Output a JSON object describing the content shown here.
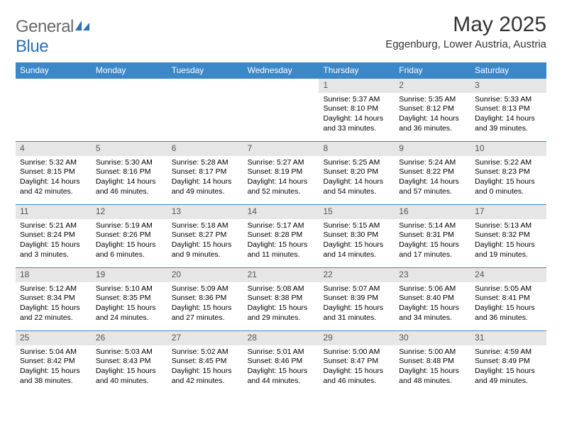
{
  "logo": {
    "text1": "General",
    "text2": "Blue"
  },
  "title": "May 2025",
  "location": "Eggenburg, Lower Austria, Austria",
  "colors": {
    "header_bg": "#3b87c8",
    "header_text": "#ffffff",
    "daynum_bg": "#e6e6e6",
    "daynum_text": "#555555",
    "border": "#3b87c8",
    "logo_gray": "#6a6a6a",
    "logo_blue": "#2d6fb8"
  },
  "weekdays": [
    "Sunday",
    "Monday",
    "Tuesday",
    "Wednesday",
    "Thursday",
    "Friday",
    "Saturday"
  ],
  "weeks": [
    [
      null,
      null,
      null,
      null,
      {
        "n": "1",
        "sr": "5:37 AM",
        "ss": "8:10 PM",
        "dl1": "Daylight: 14 hours",
        "dl2": "and 33 minutes."
      },
      {
        "n": "2",
        "sr": "5:35 AM",
        "ss": "8:12 PM",
        "dl1": "Daylight: 14 hours",
        "dl2": "and 36 minutes."
      },
      {
        "n": "3",
        "sr": "5:33 AM",
        "ss": "8:13 PM",
        "dl1": "Daylight: 14 hours",
        "dl2": "and 39 minutes."
      }
    ],
    [
      {
        "n": "4",
        "sr": "5:32 AM",
        "ss": "8:15 PM",
        "dl1": "Daylight: 14 hours",
        "dl2": "and 42 minutes."
      },
      {
        "n": "5",
        "sr": "5:30 AM",
        "ss": "8:16 PM",
        "dl1": "Daylight: 14 hours",
        "dl2": "and 46 minutes."
      },
      {
        "n": "6",
        "sr": "5:28 AM",
        "ss": "8:17 PM",
        "dl1": "Daylight: 14 hours",
        "dl2": "and 49 minutes."
      },
      {
        "n": "7",
        "sr": "5:27 AM",
        "ss": "8:19 PM",
        "dl1": "Daylight: 14 hours",
        "dl2": "and 52 minutes."
      },
      {
        "n": "8",
        "sr": "5:25 AM",
        "ss": "8:20 PM",
        "dl1": "Daylight: 14 hours",
        "dl2": "and 54 minutes."
      },
      {
        "n": "9",
        "sr": "5:24 AM",
        "ss": "8:22 PM",
        "dl1": "Daylight: 14 hours",
        "dl2": "and 57 minutes."
      },
      {
        "n": "10",
        "sr": "5:22 AM",
        "ss": "8:23 PM",
        "dl1": "Daylight: 15 hours",
        "dl2": "and 0 minutes."
      }
    ],
    [
      {
        "n": "11",
        "sr": "5:21 AM",
        "ss": "8:24 PM",
        "dl1": "Daylight: 15 hours",
        "dl2": "and 3 minutes."
      },
      {
        "n": "12",
        "sr": "5:19 AM",
        "ss": "8:26 PM",
        "dl1": "Daylight: 15 hours",
        "dl2": "and 6 minutes."
      },
      {
        "n": "13",
        "sr": "5:18 AM",
        "ss": "8:27 PM",
        "dl1": "Daylight: 15 hours",
        "dl2": "and 9 minutes."
      },
      {
        "n": "14",
        "sr": "5:17 AM",
        "ss": "8:28 PM",
        "dl1": "Daylight: 15 hours",
        "dl2": "and 11 minutes."
      },
      {
        "n": "15",
        "sr": "5:15 AM",
        "ss": "8:30 PM",
        "dl1": "Daylight: 15 hours",
        "dl2": "and 14 minutes."
      },
      {
        "n": "16",
        "sr": "5:14 AM",
        "ss": "8:31 PM",
        "dl1": "Daylight: 15 hours",
        "dl2": "and 17 minutes."
      },
      {
        "n": "17",
        "sr": "5:13 AM",
        "ss": "8:32 PM",
        "dl1": "Daylight: 15 hours",
        "dl2": "and 19 minutes."
      }
    ],
    [
      {
        "n": "18",
        "sr": "5:12 AM",
        "ss": "8:34 PM",
        "dl1": "Daylight: 15 hours",
        "dl2": "and 22 minutes."
      },
      {
        "n": "19",
        "sr": "5:10 AM",
        "ss": "8:35 PM",
        "dl1": "Daylight: 15 hours",
        "dl2": "and 24 minutes."
      },
      {
        "n": "20",
        "sr": "5:09 AM",
        "ss": "8:36 PM",
        "dl1": "Daylight: 15 hours",
        "dl2": "and 27 minutes."
      },
      {
        "n": "21",
        "sr": "5:08 AM",
        "ss": "8:38 PM",
        "dl1": "Daylight: 15 hours",
        "dl2": "and 29 minutes."
      },
      {
        "n": "22",
        "sr": "5:07 AM",
        "ss": "8:39 PM",
        "dl1": "Daylight: 15 hours",
        "dl2": "and 31 minutes."
      },
      {
        "n": "23",
        "sr": "5:06 AM",
        "ss": "8:40 PM",
        "dl1": "Daylight: 15 hours",
        "dl2": "and 34 minutes."
      },
      {
        "n": "24",
        "sr": "5:05 AM",
        "ss": "8:41 PM",
        "dl1": "Daylight: 15 hours",
        "dl2": "and 36 minutes."
      }
    ],
    [
      {
        "n": "25",
        "sr": "5:04 AM",
        "ss": "8:42 PM",
        "dl1": "Daylight: 15 hours",
        "dl2": "and 38 minutes."
      },
      {
        "n": "26",
        "sr": "5:03 AM",
        "ss": "8:43 PM",
        "dl1": "Daylight: 15 hours",
        "dl2": "and 40 minutes."
      },
      {
        "n": "27",
        "sr": "5:02 AM",
        "ss": "8:45 PM",
        "dl1": "Daylight: 15 hours",
        "dl2": "and 42 minutes."
      },
      {
        "n": "28",
        "sr": "5:01 AM",
        "ss": "8:46 PM",
        "dl1": "Daylight: 15 hours",
        "dl2": "and 44 minutes."
      },
      {
        "n": "29",
        "sr": "5:00 AM",
        "ss": "8:47 PM",
        "dl1": "Daylight: 15 hours",
        "dl2": "and 46 minutes."
      },
      {
        "n": "30",
        "sr": "5:00 AM",
        "ss": "8:48 PM",
        "dl1": "Daylight: 15 hours",
        "dl2": "and 48 minutes."
      },
      {
        "n": "31",
        "sr": "4:59 AM",
        "ss": "8:49 PM",
        "dl1": "Daylight: 15 hours",
        "dl2": "and 49 minutes."
      }
    ]
  ],
  "labels": {
    "sunrise": "Sunrise: ",
    "sunset": "Sunset: "
  }
}
